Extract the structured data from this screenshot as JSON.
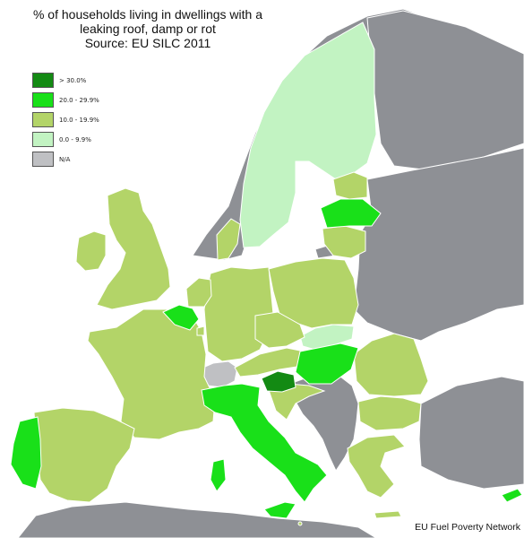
{
  "title": {
    "line1": "% of households living in dwellings with a",
    "line2": "leaking roof, damp or rot",
    "line3": "Source: EU SILC 2011"
  },
  "legend": [
    {
      "label": "> 30.0%",
      "color": "#138a13"
    },
    {
      "label": "20.0 - 29.9%",
      "color": "#19e019"
    },
    {
      "label": "10.0 - 19.9%",
      "color": "#b3d468"
    },
    {
      "label": "0.0 - 9.9%",
      "color": "#c2f3c2"
    },
    {
      "label": "N/A",
      "color": "#bfc0c3"
    }
  ],
  "colors": {
    "sea": "#ffffff",
    "non_eu": "#8e9095",
    "border": "#ffffff"
  },
  "regions": {
    "gt30": [
      "Slovenia"
    ],
    "20_29": [
      "Portugal",
      "Italy",
      "Belgium",
      "Latvia",
      "Hungary",
      "Cyprus"
    ],
    "10_19": [
      "France",
      "Spain",
      "United Kingdom",
      "Ireland",
      "Germany",
      "Poland",
      "Romania",
      "Bulgaria",
      "Greece",
      "Lithuania",
      "Estonia",
      "Denmark",
      "Netherlands",
      "Austria",
      "Czech Republic",
      "Croatia",
      "Luxembourg",
      "Malta"
    ],
    "0_9": [
      "Sweden",
      "Finland",
      "Slovakia"
    ],
    "na": [
      "Switzerland"
    ]
  },
  "credit": "EU Fuel Poverty Network"
}
